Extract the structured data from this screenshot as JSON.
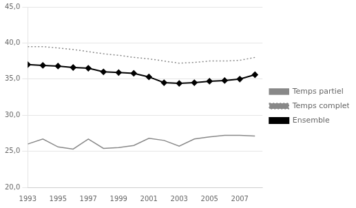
{
  "chart_data": {
    "type": "line",
    "x": [
      1993,
      1994,
      1995,
      1996,
      1997,
      1998,
      1999,
      2000,
      2001,
      2002,
      2003,
      2004,
      2005,
      2006,
      2007,
      2008
    ],
    "series": [
      {
        "name": "Temps partiel",
        "color": "#888888",
        "line_style": "solid",
        "marker": "none",
        "values": [
          26.0,
          26.7,
          25.6,
          25.3,
          26.7,
          25.4,
          25.5,
          25.8,
          26.8,
          26.5,
          25.7,
          26.7,
          27.0,
          27.2,
          27.2,
          27.1
        ]
      },
      {
        "name": "Temps complet",
        "color": "#888888",
        "line_style": "dotted",
        "marker": "none",
        "values": [
          39.5,
          39.5,
          39.3,
          39.1,
          38.8,
          38.5,
          38.3,
          38.0,
          37.8,
          37.5,
          37.2,
          37.3,
          37.5,
          37.5,
          37.6,
          38.0
        ]
      },
      {
        "name": "Ensemble",
        "color": "#000000",
        "line_style": "solid",
        "marker": "diamond",
        "values": [
          37.0,
          36.9,
          36.8,
          36.6,
          36.5,
          36.0,
          35.9,
          35.8,
          35.3,
          34.5,
          34.4,
          34.5,
          34.7,
          34.8,
          35.0,
          35.6
        ]
      }
    ],
    "xlim": [
      1993,
      2008.5
    ],
    "xticks": [
      1993,
      1995,
      1997,
      1999,
      2001,
      2003,
      2005,
      2007
    ],
    "ylim": [
      20.0,
      45.0
    ],
    "yticks": [
      {
        "value": 20.0,
        "label": "20,0"
      },
      {
        "value": 25.0,
        "label": "25,0"
      },
      {
        "value": 30.0,
        "label": "30,0"
      },
      {
        "value": 35.0,
        "label": "35,0"
      },
      {
        "value": 40.0,
        "label": "40,0"
      },
      {
        "value": 45.0,
        "label": "45,0"
      }
    ],
    "grid": "y",
    "legend": "right"
  }
}
